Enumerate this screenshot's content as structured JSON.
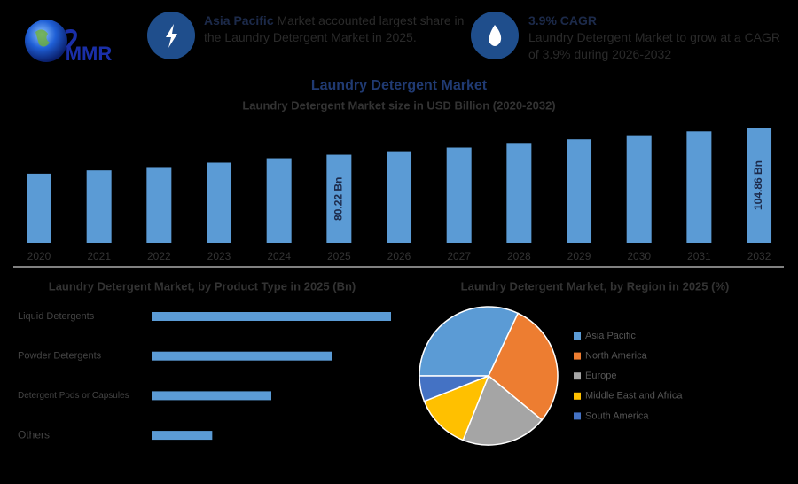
{
  "header": {
    "logo": "MMR",
    "info_1": {
      "highlight": "Asia Pacific",
      "text": "Market accounted largest share in the Laundry Detergent Market in 2025."
    },
    "info_2": {
      "highlight": "3.9% CAGR",
      "text": "Laundry Detergent Market to grow at a CAGR of 3.9% during 2026-2032"
    }
  },
  "chart_data": [
    {
      "type": "bar",
      "title": "Laundry Detergent Market",
      "subtitle": "Laundry Detergent Market size in USD Billion (2020-2032)",
      "categories": [
        "2020",
        "2021",
        "2022",
        "2023",
        "2024",
        "2025",
        "2026",
        "2027",
        "2028",
        "2029",
        "2030",
        "2031",
        "2032"
      ],
      "values": [
        63,
        66,
        69,
        73,
        77,
        80.22,
        83.4,
        86.7,
        90.9,
        94.2,
        97.9,
        101.4,
        104.86
      ],
      "value_labels": [
        null,
        null,
        null,
        null,
        null,
        "80.22 Bn",
        null,
        null,
        null,
        null,
        null,
        null,
        "104.86 Bn"
      ],
      "color": "#5b9bd5"
    },
    {
      "type": "hbar",
      "title": "Laundry Detergent Market, by Product Type in 2025 (Bn)",
      "categories": [
        "Liquid Detergents",
        "Powder Detergents",
        "Detergent Pods or Capsules",
        "Others"
      ],
      "values": [
        32,
        24.1,
        16,
        8.1
      ],
      "color": "#5b9bd5"
    },
    {
      "type": "pie",
      "title": "Laundry Detergent Market, by Region in 2025 (%)",
      "categories": [
        "Asia Pacific",
        "North America",
        "Europe",
        "Middle East and Africa",
        "South America"
      ],
      "values": [
        32,
        29,
        20,
        13,
        6
      ],
      "colors": [
        "#5b9bd5",
        "#ed7d31",
        "#a5a5a5",
        "#ffc000",
        "#4472c4"
      ]
    }
  ]
}
